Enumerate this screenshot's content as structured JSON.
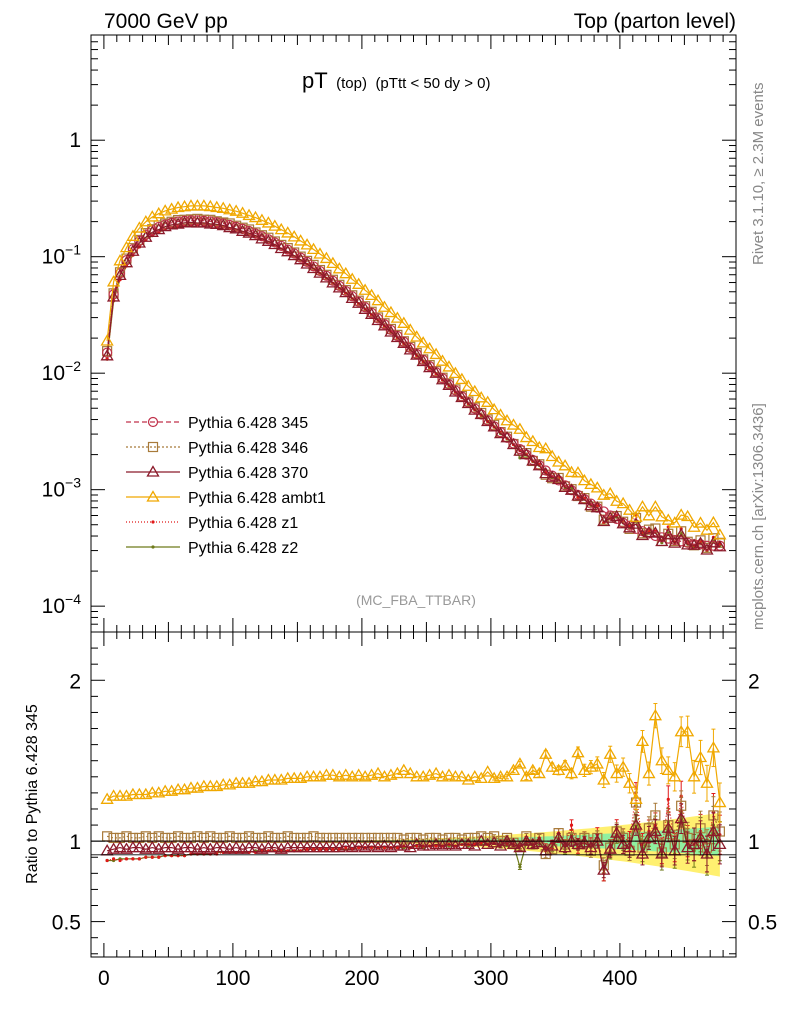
{
  "header": {
    "left": "7000 GeV pp",
    "right": "Top (parton level)"
  },
  "plot_title": {
    "main": "pT",
    "sub1": "(top)",
    "sub2": "(pTtt < 50 dy > 0)"
  },
  "watermark": "(MC_FBA_TTBAR)",
  "side_labels": {
    "rivet": "Rivet 3.1.10, ≥ 2.3M events",
    "mcplots": "mcplots.cern.ch [arXiv:1306.3436]"
  },
  "ratio_ylabel": "Ratio to Pythia 6.428 345",
  "colors": {
    "s345": "#c0304a",
    "s346": "#a87a3a",
    "s370": "#8b1a2a",
    "ambt1": "#f0a800",
    "z1": "#e01818",
    "z2": "#6e7a1a",
    "band_green": "#90f0a0",
    "band_yellow": "#fff070"
  },
  "chart_data": [
    {
      "type": "line",
      "yscale": "log",
      "xlim": [
        -10,
        490
      ],
      "ylim": [
        6e-05,
        8
      ],
      "y_ticks": [
        {
          "v": 0.0001,
          "m": "10",
          "e": "−4"
        },
        {
          "v": 0.001,
          "m": "10",
          "e": "−3"
        },
        {
          "v": 0.01,
          "m": "10",
          "e": "−2"
        },
        {
          "v": 0.1,
          "m": "10",
          "e": "−1"
        },
        {
          "v": 1,
          "m": "1",
          "e": ""
        }
      ],
      "x": [
        2.5,
        7.5,
        12.5,
        17.5,
        22.5,
        27.5,
        32.5,
        37.5,
        42.5,
        47.5,
        52.5,
        57.5,
        62.5,
        67.5,
        72.5,
        77.5,
        82.5,
        87.5,
        92.5,
        97.5,
        102.5,
        107.5,
        112.5,
        117.5,
        122.5,
        127.5,
        132.5,
        137.5,
        142.5,
        147.5,
        152.5,
        157.5,
        162.5,
        167.5,
        172.5,
        177.5,
        182.5,
        187.5,
        192.5,
        197.5,
        202.5,
        207.5,
        212.5,
        217.5,
        222.5,
        227.5,
        232.5,
        237.5,
        242.5,
        247.5,
        252.5,
        257.5,
        262.5,
        267.5,
        272.5,
        277.5,
        282.5,
        287.5,
        292.5,
        297.5,
        302.5,
        307.5,
        312.5,
        317.5,
        322.5,
        327.5,
        332.5,
        337.5,
        342.5,
        347.5,
        352.5,
        357.5,
        362.5,
        367.5,
        372.5,
        377.5,
        382.5,
        387.5,
        392.5,
        397.5,
        402.5,
        407.5,
        412.5,
        417.5,
        422.5,
        427.5,
        432.5,
        437.5,
        442.5,
        447.5,
        452.5,
        457.5,
        462.5,
        467.5,
        472.5,
        477.5
      ],
      "reference": [
        0.015,
        0.0475,
        0.072,
        0.0935,
        0.116,
        0.1365,
        0.1546,
        0.1687,
        0.1799,
        0.1887,
        0.1955,
        0.2003,
        0.2034,
        0.205,
        0.205,
        0.2036,
        0.2011,
        0.1974,
        0.1928,
        0.1872,
        0.1808,
        0.1738,
        0.1662,
        0.1582,
        0.1498,
        0.1412,
        0.1325,
        0.1237,
        0.115,
        0.1065,
        0.0982,
        0.0902,
        0.0825,
        0.0753,
        0.0685,
        0.0621,
        0.0562,
        0.0507,
        0.0457,
        0.0411,
        0.0368,
        0.033,
        0.0295,
        0.0263,
        0.0235,
        0.0209,
        0.0186,
        0.0165,
        0.0146,
        0.013,
        0.0115,
        0.0102,
        0.00905,
        0.00802,
        0.00711,
        0.00631,
        0.0056,
        0.00497,
        0.00442,
        0.00393,
        0.0035,
        0.00312,
        0.00279,
        0.00249,
        0.00223,
        0.002,
        0.0018,
        0.00162,
        0.00146,
        0.00132,
        0.0012,
        0.00109,
        0.00099,
        0.0009,
        0.00083,
        0.00076,
        0.0007,
        0.00065,
        0.0006,
        0.00056,
        0.00052,
        0.00049,
        0.00046,
        0.00044,
        0.00042,
        0.0004,
        0.00039,
        0.00038,
        0.00037,
        0.00036,
        0.00035,
        0.00034,
        0.00034,
        0.00033,
        0.00033,
        0.00033
      ],
      "series": [
        {
          "name": "Pythia 6.428 345",
          "key": "s345",
          "marker": "circle",
          "dash": "5,3",
          "ratio": [
            1.0,
            1.0,
            1.0,
            1.0,
            1.0,
            1.0,
            1.0,
            1.0,
            1.0,
            1.0,
            1.0,
            1.0,
            1.0,
            1.0,
            1.0,
            1.0,
            1.0,
            1.0,
            1.0,
            1.0,
            1.0,
            1.0,
            1.0,
            1.0,
            1.0,
            1.0,
            1.0,
            1.0,
            1.0,
            1.0,
            1.0,
            1.0,
            1.0,
            1.0,
            1.0,
            1.0,
            1.0,
            1.0,
            1.0,
            1.0,
            1.0,
            1.0,
            1.0,
            1.0,
            1.0,
            1.0,
            1.0,
            1.0,
            1.0,
            1.0,
            1.0,
            1.0,
            1.0,
            1.0,
            1.0,
            1.0,
            1.0,
            1.0,
            1.0,
            1.0,
            1.0,
            1.0,
            1.0,
            1.0,
            1.0,
            1.0,
            1.0,
            1.0,
            1.0,
            1.0,
            1.0,
            1.0,
            1.0,
            1.0,
            1.0,
            1.0,
            1.0,
            1.0,
            1.0,
            1.0,
            1.0,
            1.0,
            1.0,
            1.0,
            1.0,
            1.0,
            1.0,
            1.0,
            1.0,
            1.0,
            1.0,
            1.0,
            1.0,
            1.0,
            1.0,
            1.0
          ]
        },
        {
          "name": "Pythia 6.428 346",
          "key": "s346",
          "marker": "square",
          "dash": "2,2",
          "ratio": [
            1.03,
            1.02,
            1.02,
            1.03,
            1.02,
            1.02,
            1.03,
            1.02,
            1.03,
            1.02,
            1.02,
            1.03,
            1.02,
            1.02,
            1.03,
            1.02,
            1.03,
            1.02,
            1.02,
            1.03,
            1.02,
            1.02,
            1.03,
            1.02,
            1.02,
            1.03,
            1.02,
            1.02,
            1.03,
            1.02,
            1.02,
            1.02,
            1.03,
            1.02,
            1.02,
            1.02,
            1.02,
            1.02,
            1.02,
            1.02,
            1.02,
            1.02,
            1.02,
            1.02,
            1.02,
            1.02,
            1.01,
            1.02,
            1.02,
            1.01,
            1.02,
            1.02,
            1.01,
            1.02,
            1.02,
            1.01,
            1.02,
            1.02,
            1.03,
            1.02,
            1.03,
            1.0,
            1.02,
            0.99,
            0.97,
            1.03,
            0.98,
            1.02,
            0.92,
            0.95,
            1.05,
            0.98,
            1.02,
            0.98,
            1.02,
            0.94,
            1.02,
            0.85,
            0.96,
            1.06,
            1.02,
            0.94,
            1.24,
            0.96,
            1.08,
            1.16,
            0.93,
            1.1,
            0.98,
            1.22,
            1.02,
            0.98,
            1.08,
            0.96,
            1.16,
            1.06
          ]
        },
        {
          "name": "Pythia 6.428 370",
          "key": "s370",
          "marker": "triangle",
          "dash": "",
          "ratio": [
            0.94,
            0.95,
            0.96,
            0.95,
            0.96,
            0.96,
            0.95,
            0.96,
            0.95,
            0.96,
            0.96,
            0.95,
            0.96,
            0.96,
            0.95,
            0.96,
            0.95,
            0.96,
            0.96,
            0.95,
            0.96,
            0.95,
            0.96,
            0.96,
            0.95,
            0.96,
            0.96,
            0.95,
            0.96,
            0.96,
            0.96,
            0.96,
            0.96,
            0.96,
            0.96,
            0.96,
            0.96,
            0.97,
            0.96,
            0.97,
            0.96,
            0.97,
            0.96,
            0.97,
            0.96,
            0.97,
            0.97,
            0.96,
            0.98,
            0.97,
            0.97,
            0.98,
            0.97,
            0.98,
            0.97,
            0.98,
            0.98,
            0.97,
            1.0,
            0.98,
            0.99,
            0.97,
            1.0,
            0.98,
            0.96,
            1.0,
            0.98,
            0.99,
            0.94,
            0.97,
            1.02,
            0.96,
            1.0,
            0.98,
            0.99,
            0.96,
            1.0,
            0.82,
            0.95,
            1.05,
            0.98,
            0.96,
            1.1,
            0.92,
            1.02,
            1.06,
            0.92,
            1.08,
            0.94,
            1.14,
            0.96,
            0.98,
            1.02,
            0.92,
            1.06,
            0.98
          ]
        },
        {
          "name": "Pythia 6.428 ambt1",
          "key": "ambt1",
          "marker": "triangle",
          "dash": "",
          "ratio": [
            1.26,
            1.28,
            1.28,
            1.28,
            1.29,
            1.29,
            1.29,
            1.3,
            1.3,
            1.31,
            1.31,
            1.32,
            1.32,
            1.33,
            1.33,
            1.34,
            1.34,
            1.34,
            1.35,
            1.35,
            1.36,
            1.36,
            1.36,
            1.37,
            1.37,
            1.38,
            1.38,
            1.38,
            1.39,
            1.39,
            1.39,
            1.4,
            1.4,
            1.4,
            1.41,
            1.41,
            1.4,
            1.41,
            1.4,
            1.41,
            1.4,
            1.41,
            1.42,
            1.4,
            1.41,
            1.42,
            1.44,
            1.42,
            1.4,
            1.4,
            1.41,
            1.42,
            1.4,
            1.41,
            1.4,
            1.4,
            1.38,
            1.4,
            1.39,
            1.43,
            1.39,
            1.4,
            1.4,
            1.44,
            1.48,
            1.4,
            1.44,
            1.42,
            1.54,
            1.46,
            1.44,
            1.47,
            1.42,
            1.55,
            1.44,
            1.46,
            1.48,
            1.38,
            1.54,
            1.42,
            1.46,
            1.36,
            1.26,
            1.62,
            1.42,
            1.78,
            1.5,
            1.44,
            1.4,
            1.68,
            1.68,
            1.4,
            1.52,
            1.36,
            1.58,
            1.24
          ]
        },
        {
          "name": "Pythia 6.428 z1",
          "key": "z1",
          "marker": "dot",
          "dash": "1,2",
          "ratio": [
            0.88,
            0.89,
            0.88,
            0.89,
            0.89,
            0.89,
            0.9,
            0.9,
            0.9,
            0.91,
            0.91,
            0.91,
            0.91,
            0.92,
            0.92,
            0.92,
            0.92,
            0.92,
            0.93,
            0.93,
            0.93,
            0.93,
            0.93,
            0.93,
            0.94,
            0.94,
            0.94,
            0.94,
            0.94,
            0.94,
            0.94,
            0.95,
            0.95,
            0.95,
            0.95,
            0.95,
            0.95,
            0.96,
            0.95,
            0.96,
            0.96,
            0.96,
            0.96,
            0.96,
            0.96,
            0.96,
            0.97,
            0.96,
            0.97,
            0.97,
            0.97,
            0.97,
            0.97,
            0.98,
            0.97,
            0.98,
            0.98,
            0.98,
            0.99,
            0.98,
            0.99,
            1.0,
            0.99,
            0.98,
            0.97,
            1.01,
            0.98,
            1.02,
            0.96,
            0.98,
            1.05,
            0.98,
            1.1,
            0.96,
            1.02,
            0.98,
            1.04,
            0.8,
            0.96,
            1.08,
            1.02,
            1.0,
            1.3,
            0.98,
            1.06,
            1.1,
            0.94,
            1.26,
            0.96,
            1.28,
            1.0,
            0.98,
            1.06,
            0.92,
            1.18,
            1.04
          ]
        },
        {
          "name": "Pythia 6.428 z2",
          "key": "z2",
          "marker": "dot",
          "dash": "",
          "ratio": [
            0.88,
            0.88,
            0.89,
            0.89,
            0.89,
            0.89,
            0.9,
            0.9,
            0.9,
            0.91,
            0.91,
            0.91,
            0.91,
            0.92,
            0.92,
            0.92,
            0.92,
            0.93,
            0.93,
            0.93,
            0.93,
            0.93,
            0.93,
            0.94,
            0.94,
            0.94,
            0.94,
            0.94,
            0.94,
            0.94,
            0.94,
            0.95,
            0.95,
            0.95,
            0.95,
            0.95,
            0.95,
            0.95,
            0.95,
            0.96,
            0.96,
            0.96,
            0.96,
            0.96,
            0.96,
            0.96,
            0.96,
            0.96,
            0.97,
            0.96,
            0.97,
            0.97,
            0.97,
            0.97,
            0.97,
            0.98,
            0.97,
            0.98,
            0.98,
            0.98,
            0.99,
            0.97,
            0.98,
            0.98,
            0.84,
            0.99,
            0.97,
            1.0,
            0.94,
            0.96,
            1.02,
            0.95,
            1.04,
            0.95,
            1.0,
            0.96,
            1.02,
            0.8,
            0.94,
            1.04,
            1.0,
            0.96,
            1.16,
            0.94,
            1.04,
            1.08,
            0.9,
            1.12,
            0.92,
            1.18,
            0.98,
            0.94,
            1.04,
            0.9,
            1.1,
            1.0
          ]
        }
      ]
    },
    {
      "type": "line",
      "role": "ratio",
      "xlim": [
        -10,
        490
      ],
      "ylim": [
        0.28,
        2.3
      ],
      "y_ticks": [
        0.5,
        1,
        2
      ],
      "y_tick_labels": [
        "0.5",
        "1",
        "2"
      ],
      "x_ticks": [
        0,
        100,
        200,
        300,
        400
      ],
      "x_tick_labels": [
        "0",
        "100",
        "200",
        "300",
        "400"
      ],
      "ylabel": "Ratio to Pythia 6.428 345"
    }
  ]
}
